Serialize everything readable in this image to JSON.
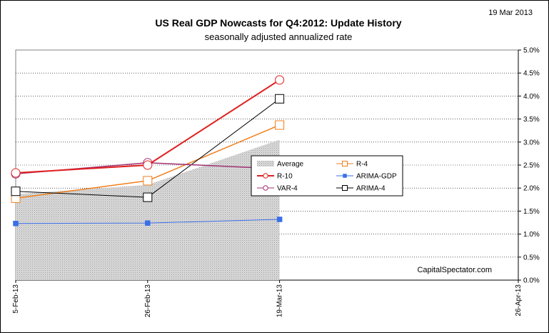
{
  "chart_data": {
    "type": "line",
    "title": "US Real GDP Nowcasts for Q4:2012: Update History",
    "subtitle": "seasonally adjusted annualized rate",
    "date_stamp": "19 Mar 2013",
    "watermark": "CapitalSpectator.com",
    "x_ticks": [
      "5-Feb-13",
      "26-Feb-13",
      "19-Mar-13",
      "26-Apr-13"
    ],
    "x_range": [
      "2013-02-05",
      "2013-04-26"
    ],
    "y_axis": {
      "side": "right",
      "min": 0,
      "max": 5,
      "step": 0.5
    },
    "y_ticks": [
      "0.0%",
      "0.5%",
      "1.0%",
      "1.5%",
      "2.0%",
      "2.5%",
      "3.0%",
      "3.5%",
      "4.0%",
      "4.5%",
      "5.0%"
    ],
    "grid": {
      "horizontal": true,
      "style": "dotted"
    },
    "legend_position": "center",
    "x": [
      "2013-02-05",
      "2013-02-26",
      "2013-03-19"
    ],
    "series": [
      {
        "name": "Average",
        "kind": "area",
        "color": "#c8c8c8",
        "values": [
          1.87,
          2.07,
          3.05
        ]
      },
      {
        "name": "R-4",
        "kind": "line",
        "marker": "open-square",
        "color": "#f07f1e",
        "values": [
          1.78,
          2.16,
          3.37
        ]
      },
      {
        "name": "R-10",
        "kind": "line",
        "marker": "open-circle",
        "color": "#e02020",
        "values": [
          2.33,
          2.5,
          4.35
        ]
      },
      {
        "name": "ARIMA-GDP",
        "kind": "line",
        "marker": "filled-square",
        "color": "#3a6fe8",
        "values": [
          1.23,
          1.24,
          1.32
        ]
      },
      {
        "name": "VAR-4",
        "kind": "line",
        "marker": "open-circle",
        "color": "#a03070",
        "values": [
          2.31,
          2.55,
          2.42
        ]
      },
      {
        "name": "ARIMA-4",
        "kind": "line",
        "marker": "open-square",
        "color": "#000000",
        "values": [
          1.93,
          1.8,
          3.94
        ]
      }
    ],
    "legend_order": [
      "Average",
      "R-4",
      "R-10",
      "ARIMA-GDP",
      "VAR-4",
      "ARIMA-4"
    ]
  }
}
